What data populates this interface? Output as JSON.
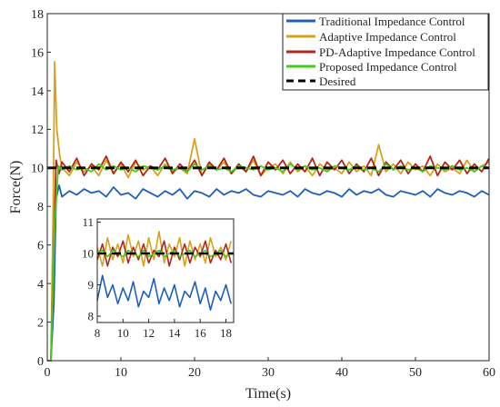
{
  "chart_data": [
    {
      "type": "line",
      "title": "",
      "xlabel": "Time(s)",
      "ylabel": "Force(N)",
      "xlim": [
        0,
        60
      ],
      "ylim": [
        0,
        18
      ],
      "xticks": [
        0,
        10,
        20,
        30,
        40,
        50,
        60
      ],
      "yticks": [
        0,
        2,
        4,
        6,
        8,
        10,
        12,
        14,
        16,
        18
      ],
      "grid": false,
      "legend_position": "top-right",
      "series": [
        {
          "name": "Traditional Impedance Control",
          "color": "#1f5fb8",
          "x": [
            0,
            0.5,
            0.9,
            1.2,
            1.6,
            2,
            3,
            4,
            5,
            6,
            7,
            8,
            9,
            10,
            11,
            12,
            13,
            14,
            15,
            16,
            17,
            18,
            19,
            20,
            21,
            22,
            23,
            24,
            25,
            26,
            27,
            28,
            29,
            30,
            31,
            32,
            33,
            34,
            35,
            36,
            37,
            38,
            39,
            40,
            41,
            42,
            43,
            44,
            45,
            46,
            47,
            48,
            49,
            50,
            51,
            52,
            53,
            54,
            55,
            56,
            57,
            58,
            59,
            60
          ],
          "y": [
            0,
            0,
            3,
            8.4,
            9.1,
            8.5,
            8.8,
            8.6,
            8.9,
            8.7,
            8.8,
            8.5,
            9.0,
            8.6,
            8.7,
            8.4,
            8.9,
            8.7,
            8.5,
            8.8,
            8.6,
            8.9,
            8.4,
            8.8,
            8.7,
            8.5,
            8.9,
            8.6,
            8.8,
            8.7,
            8.9,
            8.6,
            8.5,
            8.8,
            8.7,
            8.6,
            8.8,
            8.5,
            8.9,
            8.7,
            8.6,
            8.8,
            8.7,
            8.5,
            8.9,
            8.6,
            8.8,
            8.7,
            8.9,
            8.6,
            8.5,
            8.8,
            8.7,
            8.6,
            8.8,
            8.5,
            8.9,
            8.7,
            8.6,
            8.8,
            8.7,
            8.5,
            8.8,
            8.6
          ]
        },
        {
          "name": "Adaptive Impedance Control",
          "color": "#d9a21c",
          "x": [
            0,
            0.5,
            0.8,
            1.0,
            1.3,
            1.7,
            2,
            3,
            4,
            5,
            6,
            7,
            8,
            9,
            10,
            11,
            12,
            13,
            14,
            15,
            16,
            17,
            18,
            19,
            20,
            21,
            22,
            23,
            24,
            25,
            26,
            27,
            28,
            29,
            30,
            31,
            32,
            33,
            34,
            35,
            36,
            37,
            38,
            39,
            40,
            41,
            42,
            43,
            44,
            45,
            46,
            47,
            48,
            49,
            50,
            51,
            52,
            53,
            54,
            55,
            56,
            57,
            58,
            59,
            60
          ],
          "y": [
            0,
            0,
            8,
            15.5,
            12,
            10.6,
            10.0,
            9.6,
            10.3,
            9.8,
            10.1,
            9.6,
            10.4,
            9.7,
            10.2,
            9.5,
            10.3,
            9.9,
            10.1,
            9.6,
            10.2,
            9.8,
            10.0,
            9.7,
            11.5,
            9.6,
            10.2,
            9.9,
            10.3,
            9.7,
            10.1,
            9.8,
            10.4,
            9.6,
            10.0,
            10.2,
            9.7,
            10.3,
            9.8,
            10.1,
            9.6,
            10.2,
            9.9,
            10.0,
            9.7,
            10.3,
            9.8,
            10.1,
            9.6,
            11.2,
            9.8,
            10.2,
            9.7,
            10.3,
            9.9,
            10.1,
            9.6,
            10.2,
            9.8,
            10.0,
            9.7,
            10.4,
            9.8,
            10.1,
            10.3
          ]
        },
        {
          "name": "PD-Adaptive Impedance Control",
          "color": "#b2261b",
          "x": [
            0,
            0.5,
            0.9,
            1.2,
            1.6,
            2,
            3,
            4,
            5,
            6,
            7,
            8,
            9,
            10,
            11,
            12,
            13,
            14,
            15,
            16,
            17,
            18,
            19,
            20,
            21,
            22,
            23,
            24,
            25,
            26,
            27,
            28,
            29,
            30,
            31,
            32,
            33,
            34,
            35,
            36,
            37,
            38,
            39,
            40,
            41,
            42,
            43,
            44,
            45,
            46,
            47,
            48,
            49,
            50,
            51,
            52,
            53,
            54,
            55,
            56,
            57,
            58,
            59,
            60
          ],
          "y": [
            0,
            0,
            6,
            10.4,
            9.7,
            10.3,
            9.8,
            10.5,
            9.6,
            10.2,
            9.9,
            10.6,
            9.7,
            10.3,
            9.8,
            10.4,
            9.6,
            10.1,
            9.9,
            10.5,
            9.7,
            10.2,
            9.8,
            10.4,
            9.6,
            10.3,
            9.9,
            10.5,
            9.7,
            10.2,
            9.8,
            10.6,
            9.6,
            10.3,
            9.9,
            10.4,
            9.7,
            10.2,
            9.8,
            10.5,
            9.6,
            10.3,
            9.9,
            10.4,
            9.7,
            10.2,
            9.8,
            10.5,
            9.6,
            10.3,
            9.9,
            10.4,
            9.7,
            10.2,
            9.8,
            10.6,
            9.6,
            10.3,
            9.9,
            10.4,
            9.7,
            10.2,
            9.8,
            10.5
          ]
        },
        {
          "name": "Proposed Impedance Control",
          "color": "#44cc1c",
          "x": [
            0,
            0.5,
            1.0,
            1.5,
            2,
            3,
            4,
            5,
            6,
            7,
            8,
            9,
            10,
            11,
            12,
            13,
            14,
            15,
            16,
            17,
            18,
            19,
            20,
            21,
            22,
            23,
            24,
            25,
            26,
            27,
            28,
            29,
            30,
            31,
            32,
            33,
            34,
            35,
            36,
            37,
            38,
            39,
            40,
            41,
            42,
            43,
            44,
            45,
            46,
            47,
            48,
            49,
            50,
            51,
            52,
            53,
            54,
            55,
            56,
            57,
            58,
            59,
            60
          ],
          "y": [
            0,
            0,
            7,
            10.1,
            9.9,
            10.1,
            9.9,
            10.0,
            9.8,
            10.2,
            9.9,
            10.1,
            9.9,
            10.0,
            9.8,
            10.1,
            10.0,
            9.9,
            10.1,
            9.9,
            10.0,
            9.8,
            10.2,
            9.9,
            10.1,
            9.9,
            10.0,
            9.8,
            10.1,
            10.0,
            9.9,
            10.1,
            9.9,
            10.0,
            9.8,
            10.2,
            9.9,
            10.1,
            9.9,
            10.0,
            9.8,
            10.1,
            10.0,
            9.9,
            10.1,
            9.9,
            10.0,
            9.8,
            10.2,
            9.9,
            10.1,
            9.9,
            10.0,
            9.8,
            10.1,
            10.0,
            9.9,
            10.1,
            9.9,
            10.0,
            9.8,
            10.1,
            10.0
          ]
        },
        {
          "name": "Desired",
          "color": "#000000",
          "dashed": true,
          "x": [
            0,
            60
          ],
          "y": [
            10,
            10
          ]
        }
      ]
    },
    {
      "type": "line",
      "title": "",
      "xlabel": "",
      "ylabel": "",
      "inset": true,
      "xlim": [
        8,
        18.6
      ],
      "ylim": [
        7.8,
        11.1
      ],
      "xticks": [
        8,
        10,
        12,
        14,
        16,
        18
      ],
      "yticks": [
        8,
        9,
        10,
        11
      ],
      "series": [
        {
          "name": "Traditional Impedance Control",
          "color": "#1f5fb8",
          "x": [
            8,
            8.4,
            8.8,
            9.2,
            9.6,
            10,
            10.4,
            10.8,
            11.2,
            11.6,
            12,
            12.4,
            12.8,
            13.2,
            13.6,
            14,
            14.4,
            14.8,
            15.2,
            15.6,
            16,
            16.4,
            16.8,
            17.2,
            17.6,
            18,
            18.4
          ],
          "y": [
            8.5,
            9.3,
            8.6,
            9.0,
            8.4,
            8.9,
            8.5,
            9.1,
            8.3,
            8.8,
            8.6,
            9.2,
            8.4,
            8.9,
            8.5,
            9.0,
            8.3,
            8.8,
            8.6,
            9.1,
            8.4,
            8.9,
            8.2,
            8.8,
            8.5,
            9.0,
            8.4
          ]
        },
        {
          "name": "Adaptive Impedance Control",
          "color": "#d9a21c",
          "x": [
            8,
            8.4,
            8.8,
            9.2,
            9.6,
            10,
            10.4,
            10.8,
            11.2,
            11.6,
            12,
            12.4,
            12.8,
            13.2,
            13.6,
            14,
            14.4,
            14.8,
            15.2,
            15.6,
            16,
            16.4,
            16.8,
            17.2,
            17.6,
            18,
            18.4
          ],
          "y": [
            10.2,
            9.6,
            10.5,
            9.8,
            10.3,
            9.7,
            10.6,
            9.9,
            10.4,
            9.6,
            10.5,
            9.8,
            10.7,
            9.7,
            10.3,
            9.9,
            10.5,
            9.6,
            10.4,
            9.8,
            10.3,
            9.7,
            10.5,
            9.9,
            10.2,
            9.8,
            10.4
          ]
        },
        {
          "name": "PD-Adaptive Impedance Control",
          "color": "#b2261b",
          "x": [
            8,
            8.4,
            8.8,
            9.2,
            9.6,
            10,
            10.4,
            10.8,
            11.2,
            11.6,
            12,
            12.4,
            12.8,
            13.2,
            13.6,
            14,
            14.4,
            14.8,
            15.2,
            15.6,
            16,
            16.4,
            16.8,
            17.2,
            17.6,
            18,
            18.4
          ],
          "y": [
            9.8,
            10.3,
            9.6,
            10.2,
            9.9,
            10.4,
            9.7,
            10.2,
            9.8,
            10.3,
            9.7,
            10.1,
            9.9,
            10.4,
            9.6,
            10.2,
            9.8,
            10.3,
            9.7,
            10.2,
            9.9,
            10.4,
            9.7,
            10.1,
            9.8,
            10.3,
            9.7
          ]
        },
        {
          "name": "Proposed Impedance Control",
          "color": "#44cc1c",
          "x": [
            8,
            8.4,
            8.8,
            9.2,
            9.6,
            10,
            10.4,
            10.8,
            11.2,
            11.6,
            12,
            12.4,
            12.8,
            13.2,
            13.6,
            14,
            14.4,
            14.8,
            15.2,
            15.6,
            16,
            16.4,
            16.8,
            17.2,
            17.6,
            18,
            18.4
          ],
          "y": [
            10.0,
            10.1,
            9.9,
            10.1,
            10.0,
            9.9,
            10.1,
            10.0,
            9.9,
            10.1,
            9.9,
            10.0,
            10.1,
            9.9,
            10.0,
            10.1,
            9.9,
            10.0,
            10.1,
            9.9,
            10.0,
            10.1,
            9.9,
            10.0,
            10.1,
            9.9,
            10.0
          ]
        },
        {
          "name": "Desired",
          "color": "#000000",
          "dashed": true,
          "x": [
            8,
            18.6
          ],
          "y": [
            10,
            10
          ]
        }
      ]
    }
  ]
}
